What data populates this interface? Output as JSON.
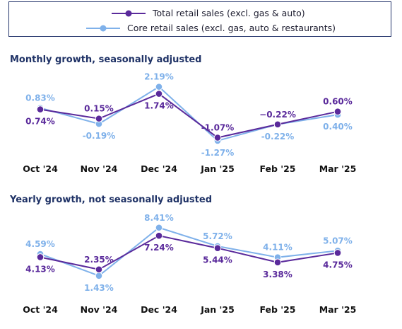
{
  "colors": {
    "total": "#5a2a9b",
    "core": "#7fb1ea"
  },
  "legend": [
    {
      "key": "total",
      "label": "Total retail sales (excl. gas & auto)"
    },
    {
      "key": "core",
      "label": "Core retail sales (excl. gas, auto & restaurants)"
    }
  ],
  "chart_data": [
    {
      "type": "line",
      "title": "Monthly growth, seasonally adjusted",
      "categories": [
        "Oct '24",
        "Nov '24",
        "Dec '24",
        "Jan '25",
        "Feb '25",
        "Mar '25"
      ],
      "series": [
        {
          "name": "Total retail sales (excl. gas & auto)",
          "key": "total",
          "values": [
            0.74,
            0.15,
            1.74,
            -1.07,
            -0.22,
            0.6
          ],
          "labels": [
            "0.74%",
            "0.15%",
            "1.74%",
            "-1.07%",
            "−0.22%",
            "0.60%"
          ]
        },
        {
          "name": "Core retail sales (excl. gas, auto & restaurants)",
          "key": "core",
          "values": [
            0.83,
            -0.19,
            2.19,
            -1.27,
            -0.22,
            0.4
          ],
          "labels": [
            "0.83%",
            "-0.19%",
            "2.19%",
            "-1.27%",
            "-0.22%",
            "0.40%"
          ]
        }
      ],
      "ylim": [
        -1.5,
        2.4
      ]
    },
    {
      "type": "line",
      "title": "Yearly growth, not seasonally adjusted",
      "categories": [
        "Oct '24",
        "Nov '24",
        "Dec '24",
        "Jan '25",
        "Feb '25",
        "Mar '25"
      ],
      "series": [
        {
          "name": "Total retail sales (excl. gas & auto)",
          "key": "total",
          "values": [
            4.13,
            2.35,
            7.24,
            5.44,
            3.38,
            4.75
          ],
          "labels": [
            "4.13%",
            "2.35%",
            "7.24%",
            "5.44%",
            "3.38%",
            "4.75%"
          ]
        },
        {
          "name": "Core retail sales (excl. gas, auto & restaurants)",
          "key": "core",
          "values": [
            4.59,
            1.43,
            8.41,
            5.72,
            4.11,
            5.07
          ],
          "labels": [
            "4.59%",
            "1.43%",
            "8.41%",
            "5.72%",
            "4.11%",
            "5.07%"
          ]
        }
      ],
      "ylim": [
        1.0,
        9.0
      ]
    }
  ]
}
